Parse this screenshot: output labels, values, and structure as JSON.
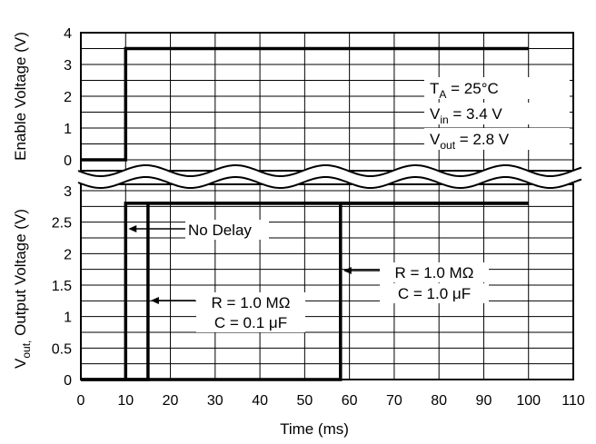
{
  "chart_data": [
    {
      "type": "line",
      "name": "enable-panel",
      "xlabel": "",
      "ylabel": "Enable Voltage (V)",
      "xlim": [
        0,
        110
      ],
      "ylim": [
        0,
        4
      ],
      "yticks": [
        "0",
        "1",
        "2",
        "3",
        "4"
      ],
      "grid": true,
      "series": [
        {
          "name": "",
          "x": [
            0,
            10,
            10,
            100
          ],
          "y": [
            0,
            0,
            3.5,
            3.5
          ]
        }
      ],
      "conditions": {
        "ta": {
          "pre": "T",
          "sub": "A",
          "post": " = 25°C"
        },
        "vin": {
          "pre": "V",
          "sub": "in",
          "post": " = 3.4 V"
        },
        "vout": {
          "pre": "V",
          "sub": "out",
          "post": " = 2.8 V"
        }
      }
    },
    {
      "type": "line",
      "name": "output-panel",
      "xlabel": "Time (ms)",
      "ylabel": {
        "pre": "V",
        "sub": "out,",
        "post": " Output Voltage (V)"
      },
      "xlim": [
        0,
        110
      ],
      "ylim": [
        0,
        3
      ],
      "xticks": [
        "0",
        "10",
        "20",
        "30",
        "40",
        "50",
        "60",
        "70",
        "80",
        "90",
        "100",
        "110"
      ],
      "yticks": [
        "0",
        "0.5",
        "1",
        "1.5",
        "2",
        "2.5",
        "3"
      ],
      "grid": true,
      "series": [
        {
          "name": "No Delay",
          "x": [
            10,
            10,
            100
          ],
          "y": [
            0,
            2.8,
            2.8
          ]
        },
        {
          "name": "R = 1.0 MΩ, C = 0.1 μF",
          "x": [
            0,
            15,
            15,
            100
          ],
          "y": [
            0,
            0,
            2.8,
            2.8
          ]
        },
        {
          "name": "R = 1.0 MΩ, C = 1.0 μF",
          "x": [
            0,
            58,
            58,
            100
          ],
          "y": [
            0,
            0,
            2.8,
            2.8
          ]
        }
      ],
      "annotations": {
        "no_delay": "No Delay",
        "c01_r": "R = 1.0 MΩ",
        "c01_c": "C = 0.1 μF",
        "c10_r": "R = 1.0 MΩ",
        "c10_c": "C = 1.0 μF"
      }
    }
  ]
}
